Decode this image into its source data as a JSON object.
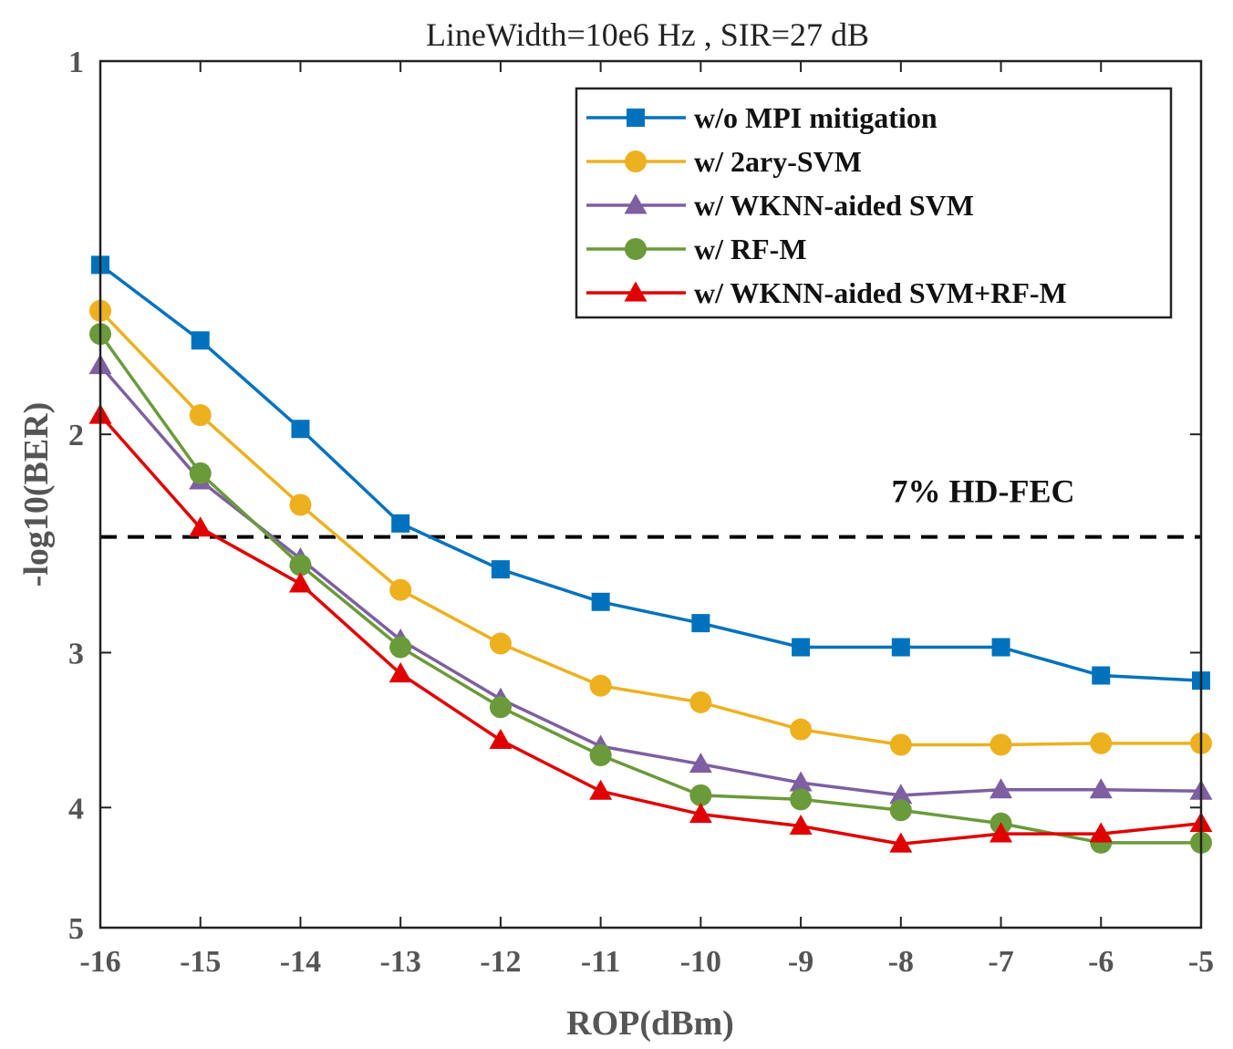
{
  "chart_data": {
    "type": "line",
    "title": "LineWidth=10e6 Hz , SIR=27 dB",
    "xlabel": "ROP(dBm)",
    "ylabel": "-log10(BER)",
    "x": [
      -16,
      -15,
      -14,
      -13,
      -12,
      -11,
      -10,
      -9,
      -8,
      -7,
      -6,
      -5
    ],
    "x_ticks": [
      "-16",
      "-15",
      "-14",
      "-13",
      "-12",
      "-11",
      "-10",
      "-9",
      "-8",
      "-7",
      "-6",
      "-5"
    ],
    "xlim": [
      -16,
      -5
    ],
    "ylim": [
      1,
      5
    ],
    "y_scale": "log",
    "y_reversed": true,
    "y_ticks": [
      "1",
      "2",
      "3",
      "4",
      "5"
    ],
    "grid": false,
    "legend_position": "top-right",
    "series": [
      {
        "name": "w/o MPI mitigation",
        "color": "#0072BD",
        "marker": "square",
        "values": [
          1.46,
          1.68,
          1.98,
          2.36,
          2.57,
          2.73,
          2.84,
          2.97,
          2.97,
          2.97,
          3.13,
          3.16
        ]
      },
      {
        "name": "w/ 2ary-SVM",
        "color": "#EDB120",
        "marker": "circle",
        "values": [
          1.59,
          1.93,
          2.28,
          2.67,
          2.95,
          3.19,
          3.29,
          3.46,
          3.56,
          3.56,
          3.55,
          3.55
        ]
      },
      {
        "name": "w/ WKNN-aided SVM",
        "color": "#7E5FA1",
        "marker": "triangle",
        "values": [
          1.76,
          2.18,
          2.52,
          2.93,
          3.27,
          3.57,
          3.69,
          3.82,
          3.91,
          3.87,
          3.87,
          3.88
        ]
      },
      {
        "name": "w/ RF-M",
        "color": "#6A9A3A",
        "marker": "circle",
        "values": [
          1.66,
          2.15,
          2.55,
          2.97,
          3.32,
          3.63,
          3.91,
          3.94,
          4.02,
          4.12,
          4.27,
          4.27
        ]
      },
      {
        "name": "w/ WKNN-aided SVM+RF-M",
        "color": "#E00000",
        "marker": "triangle",
        "values": [
          1.93,
          2.38,
          2.64,
          3.12,
          3.53,
          3.88,
          4.05,
          4.14,
          4.28,
          4.2,
          4.2,
          4.12
        ]
      }
    ],
    "reference_line": {
      "label": "7% HD-FEC",
      "value": 2.42,
      "style": "dashed",
      "color": "#000000"
    }
  }
}
